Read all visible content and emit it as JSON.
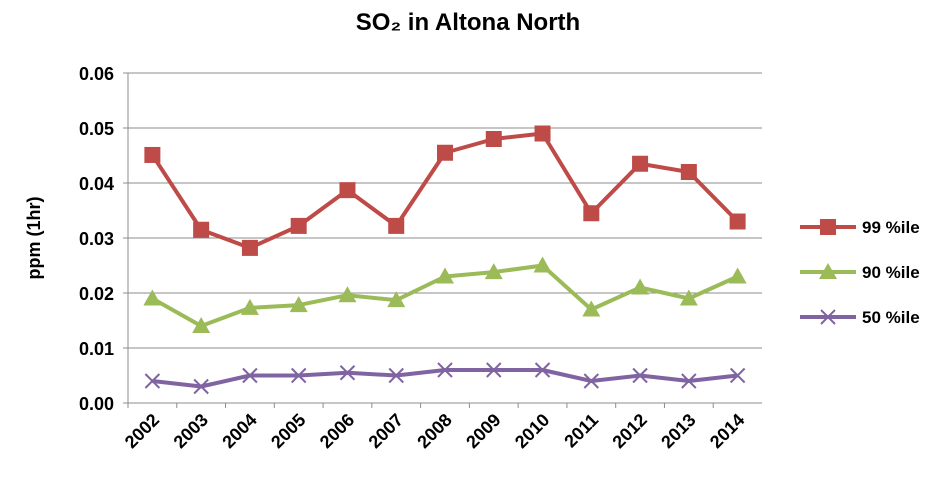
{
  "chart_data": {
    "type": "line",
    "title": "SO₂ in Altona North",
    "y_label": "ppm (1hr)",
    "categories": [
      "2002",
      "2003",
      "2004",
      "2005",
      "2006",
      "2007",
      "2008",
      "2009",
      "2010",
      "2011",
      "2012",
      "2013",
      "2014"
    ],
    "series": [
      {
        "name": "99 %ile",
        "color": "#be4b48",
        "marker": "square",
        "values": [
          0.0451,
          0.0315,
          0.0282,
          0.0322,
          0.0387,
          0.0322,
          0.0455,
          0.048,
          0.049,
          0.0345,
          0.0435,
          0.042,
          0.033
        ]
      },
      {
        "name": "90 %ile",
        "color": "#9bbb59",
        "marker": "triangle",
        "values": [
          0.019,
          0.014,
          0.0173,
          0.0178,
          0.0196,
          0.0187,
          0.023,
          0.0238,
          0.025,
          0.017,
          0.021,
          0.019,
          0.023
        ]
      },
      {
        "name": "50 %ile",
        "color": "#8064a2",
        "marker": "x",
        "values": [
          0.004,
          0.003,
          0.005,
          0.005,
          0.0055,
          0.005,
          0.006,
          0.006,
          0.006,
          0.004,
          0.005,
          0.004,
          0.005
        ]
      }
    ],
    "ylim": [
      0,
      0.06
    ],
    "yticks": [
      {
        "value": 0,
        "label": "0.00"
      },
      0.01,
      0.02,
      0.03,
      0.04,
      0.05,
      0.06
    ],
    "grid": true,
    "legend": "right"
  }
}
